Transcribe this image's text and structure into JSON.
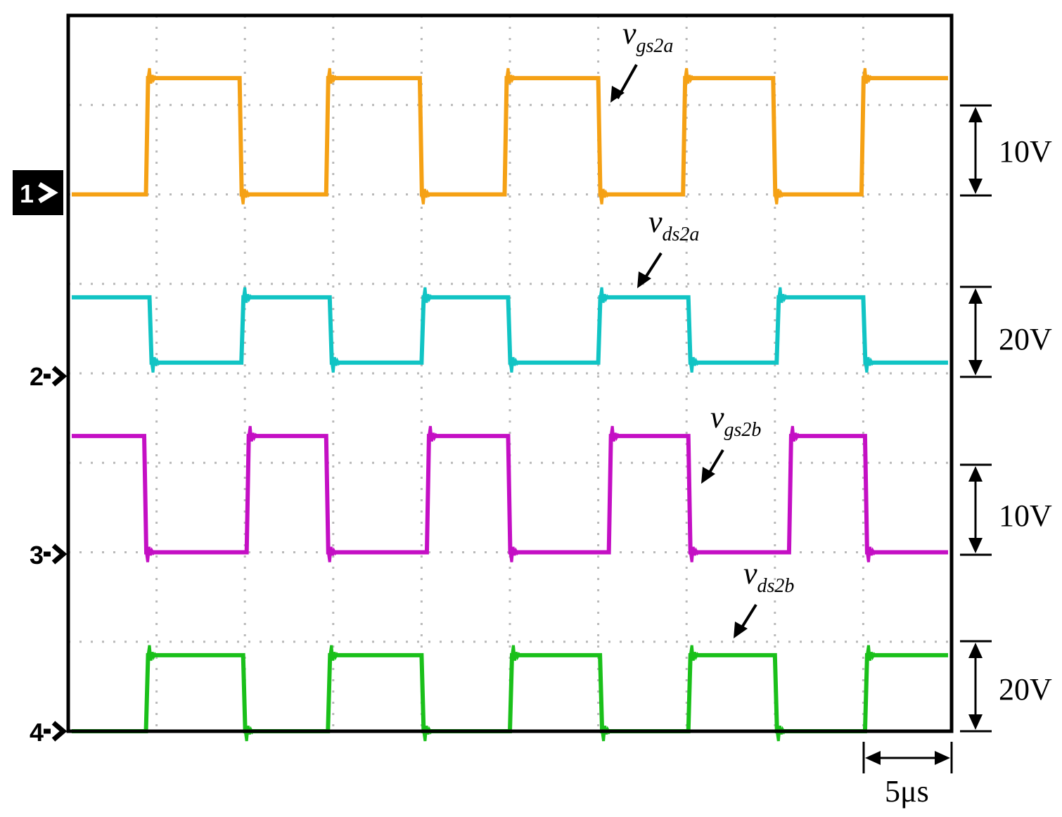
{
  "chart_data": {
    "type": "line",
    "title": "",
    "xlabel": "",
    "ylabel": "",
    "grid": true,
    "x_divisions": 10,
    "y_divisions": 8,
    "time_per_div": "5μs",
    "period_us": 10,
    "duty": 0.5,
    "series": [
      {
        "id": "ch1",
        "name": "vgs2a",
        "base": "v",
        "sub": "gs2a",
        "color": "#f5a115",
        "channel_marker": "1",
        "scale_label": "10V",
        "low_div": 6.0,
        "high_div": 7.3,
        "edges_us": [
          4.4,
          9.7,
          14.6,
          19.9,
          24.7,
          30.0,
          34.8,
          39.9,
          44.9
        ],
        "start_level": "low"
      },
      {
        "id": "ch2",
        "name": "vds2a",
        "base": "v",
        "sub": "ds2a",
        "color": "#11c4c4",
        "channel_marker": "2",
        "scale_label": "20V",
        "low_div": 4.12,
        "high_div": 4.85,
        "edges_us": [
          4.6,
          9.8,
          14.8,
          20.0,
          24.9,
          30.0,
          35.1,
          40.1,
          45.0
        ],
        "start_level": "high"
      },
      {
        "id": "ch3",
        "name": "vgs2b",
        "base": "v",
        "sub": "gs2b",
        "color": "#c40fc4",
        "channel_marker": "3",
        "scale_label": "10V",
        "low_div": 2.0,
        "high_div": 3.3,
        "edges_us": [
          4.3,
          10.1,
          14.6,
          20.3,
          24.9,
          30.6,
          35.1,
          40.8,
          45.1
        ],
        "start_level": "high"
      },
      {
        "id": "ch4",
        "name": "vds2b",
        "base": "v",
        "sub": "ds2b",
        "color": "#1ac01a",
        "channel_marker": "4",
        "scale_label": "20V",
        "low_div": 0.0,
        "high_div": 0.85,
        "edges_us": [
          4.4,
          9.9,
          14.7,
          20.0,
          25.0,
          30.1,
          35.1,
          40.0,
          45.1
        ],
        "start_level": "low"
      }
    ]
  }
}
